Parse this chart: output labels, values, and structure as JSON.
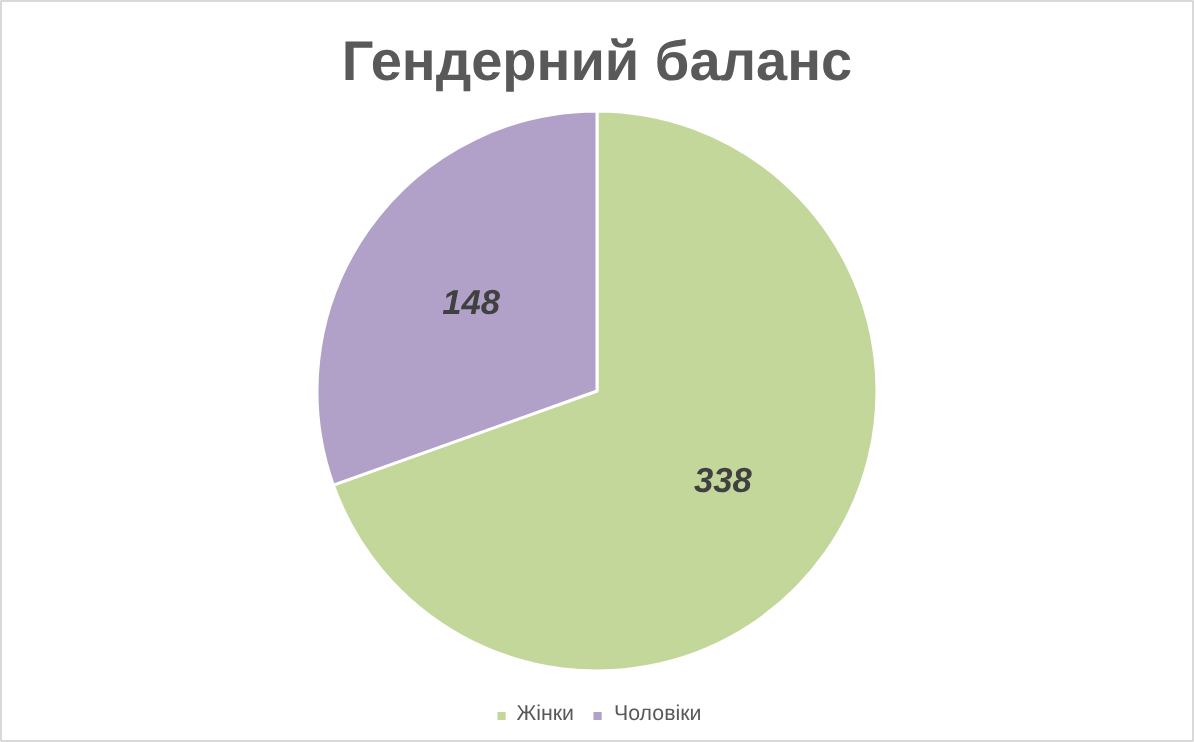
{
  "chart_data": {
    "type": "pie",
    "title": "Гендерний баланс",
    "categories": [
      "Жінки",
      "Чоловіки"
    ],
    "values": [
      338,
      148
    ],
    "colors": [
      "#c4d79b",
      "#b1a0c7"
    ],
    "data_labels": true,
    "legend": "bottom"
  }
}
